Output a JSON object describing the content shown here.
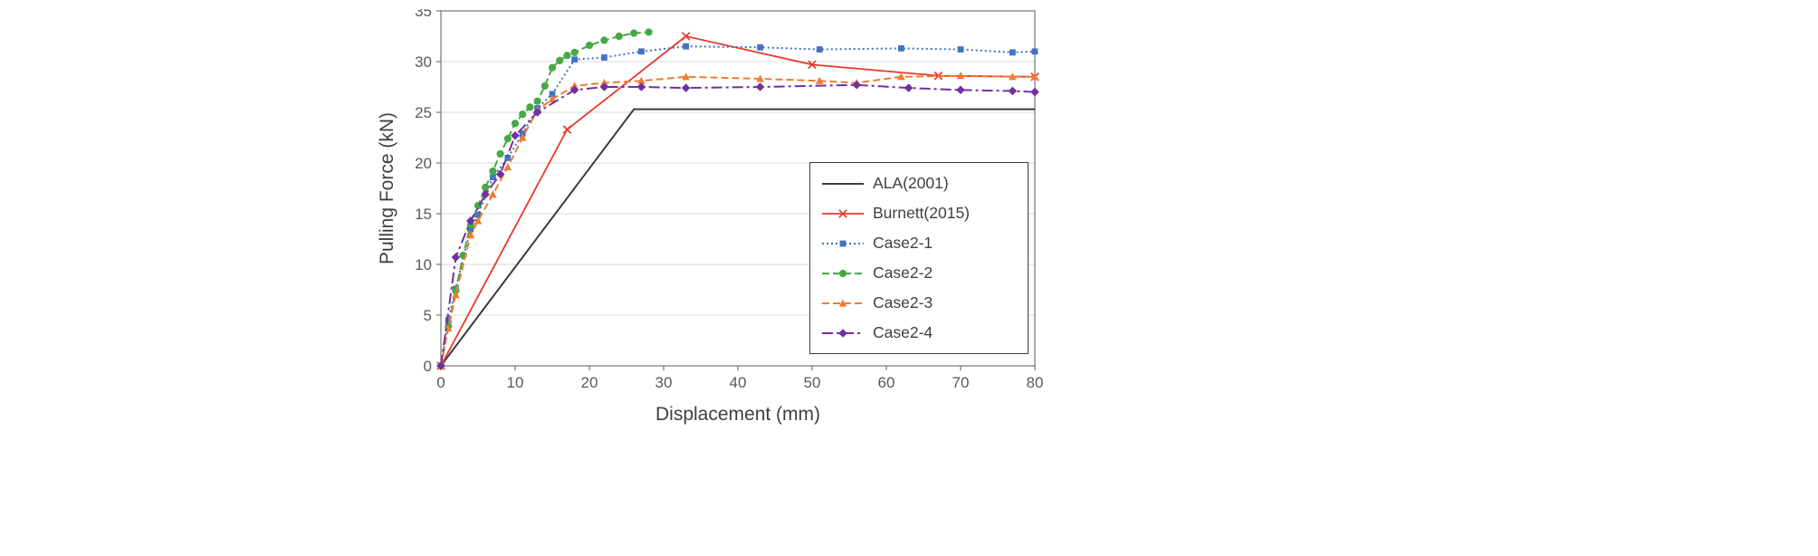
{
  "figure": {
    "background": "#ffffff"
  },
  "chart_data": {
    "type": "line",
    "title": "",
    "xlabel": "Displacement (mm)",
    "ylabel": "Pulling Force (kN)",
    "xlim": [
      0,
      80
    ],
    "ylim": [
      0,
      35
    ],
    "x_ticks": [
      0,
      10,
      20,
      30,
      40,
      50,
      60,
      70,
      80
    ],
    "y_ticks": [
      0,
      5,
      10,
      15,
      20,
      25,
      30,
      35
    ],
    "grid": "horizontal",
    "grid_color": "#d9d9d9",
    "axis_color": "#595959",
    "border_color": "#7f7f7f",
    "legend_position": "inside right",
    "series": [
      {
        "name": "ALA(2001)",
        "color": "#3b3b3b",
        "dash": "solid",
        "marker": "none",
        "width": 2,
        "points": [
          [
            0,
            0
          ],
          [
            26,
            25.3
          ],
          [
            80,
            25.3
          ]
        ]
      },
      {
        "name": "Burnett(2015)",
        "color": "#e8392d",
        "dash": "solid",
        "marker": "x",
        "width": 1.8,
        "points": [
          [
            0,
            0
          ],
          [
            17,
            23.3
          ],
          [
            33,
            32.5
          ],
          [
            50,
            29.7
          ],
          [
            67,
            28.6
          ],
          [
            80,
            28.5
          ]
        ]
      },
      {
        "name": "Case2-1",
        "color": "#4472c4",
        "dash": "dot",
        "marker": "square",
        "width": 2,
        "points": [
          [
            0,
            0
          ],
          [
            1,
            4.5
          ],
          [
            2,
            7.6
          ],
          [
            4,
            13.5
          ],
          [
            5,
            14.9
          ],
          [
            7,
            18.6
          ],
          [
            9,
            20.5
          ],
          [
            11,
            22.9
          ],
          [
            13,
            25.4
          ],
          [
            15,
            26.8
          ],
          [
            18,
            30.2
          ],
          [
            22,
            30.4
          ],
          [
            27,
            31.0
          ],
          [
            33,
            31.5
          ],
          [
            43,
            31.4
          ],
          [
            51,
            31.2
          ],
          [
            62,
            31.3
          ],
          [
            70,
            31.2
          ],
          [
            77,
            30.9
          ],
          [
            80,
            31.0
          ]
        ]
      },
      {
        "name": "Case2-2",
        "color": "#45a945",
        "dash": "dash",
        "marker": "circle",
        "width": 2,
        "points": [
          [
            0,
            0
          ],
          [
            1,
            3.9
          ],
          [
            2,
            7.4
          ],
          [
            3,
            10.9
          ],
          [
            4,
            13.9
          ],
          [
            5,
            15.8
          ],
          [
            6,
            17.6
          ],
          [
            7,
            19.2
          ],
          [
            8,
            20.9
          ],
          [
            9,
            22.4
          ],
          [
            10,
            23.9
          ],
          [
            11,
            24.8
          ],
          [
            12,
            25.5
          ],
          [
            13,
            26.1
          ],
          [
            14,
            27.6
          ],
          [
            15,
            29.4
          ],
          [
            16,
            30.1
          ],
          [
            17,
            30.6
          ],
          [
            18,
            30.9
          ],
          [
            20,
            31.6
          ],
          [
            22,
            32.1
          ],
          [
            24,
            32.5
          ],
          [
            26,
            32.8
          ],
          [
            28,
            32.9
          ]
        ]
      },
      {
        "name": "Case2-3",
        "color": "#ed7d31",
        "dash": "dash",
        "marker": "triangle",
        "width": 2,
        "points": [
          [
            0,
            0
          ],
          [
            1,
            3.7
          ],
          [
            2,
            7.0
          ],
          [
            4,
            12.9
          ],
          [
            5,
            14.3
          ],
          [
            7,
            16.9
          ],
          [
            9,
            19.6
          ],
          [
            11,
            22.5
          ],
          [
            13,
            25.2
          ],
          [
            15,
            26.3
          ],
          [
            18,
            27.6
          ],
          [
            22,
            27.9
          ],
          [
            27,
            28.1
          ],
          [
            33,
            28.5
          ],
          [
            43,
            28.3
          ],
          [
            51,
            28.1
          ],
          [
            56,
            27.9
          ],
          [
            62,
            28.5
          ],
          [
            70,
            28.6
          ],
          [
            77,
            28.5
          ],
          [
            80,
            28.5
          ]
        ]
      },
      {
        "name": "Case2-4",
        "color": "#7030a0",
        "dash": "dash-dot",
        "marker": "diamond",
        "width": 2,
        "points": [
          [
            0,
            0
          ],
          [
            2,
            10.7
          ],
          [
            4,
            14.3
          ],
          [
            6,
            16.9
          ],
          [
            8,
            18.9
          ],
          [
            10,
            22.7
          ],
          [
            13,
            25.0
          ],
          [
            18,
            27.2
          ],
          [
            22,
            27.5
          ],
          [
            27,
            27.5
          ],
          [
            33,
            27.4
          ],
          [
            43,
            27.5
          ],
          [
            56,
            27.7
          ],
          [
            63,
            27.4
          ],
          [
            70,
            27.2
          ],
          [
            77,
            27.1
          ],
          [
            80,
            27.0
          ]
        ]
      }
    ]
  }
}
